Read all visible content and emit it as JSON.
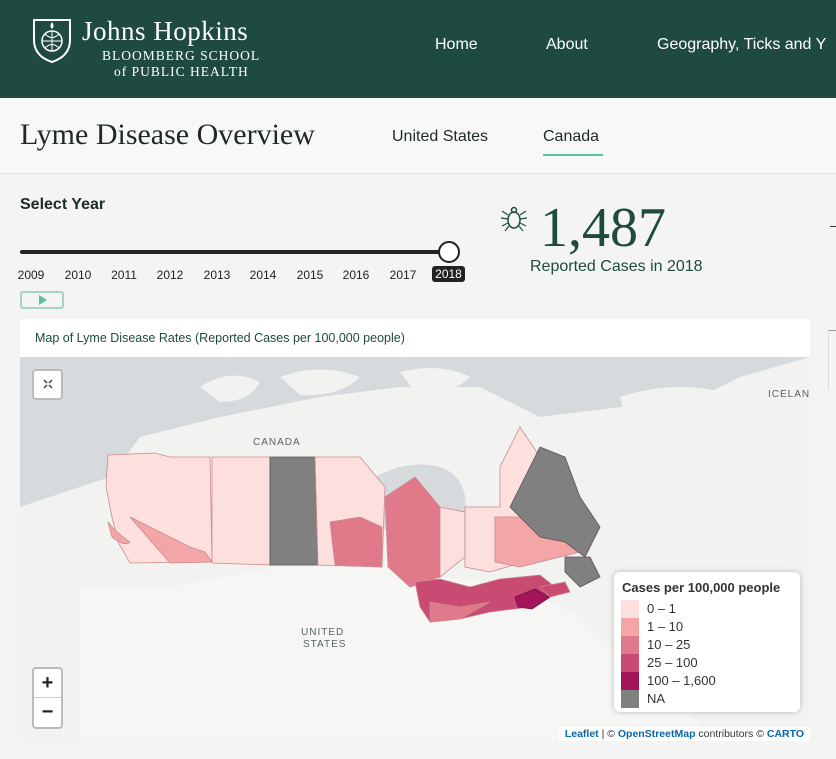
{
  "header": {
    "logo_name": "Johns Hopkins",
    "logo_sub1": "BLOOMBERG SCHOOL",
    "logo_sub2": "of PUBLIC HEALTH",
    "nav": [
      "Home",
      "About",
      "Geography, Ticks and Y"
    ]
  },
  "subheader": {
    "title": "Lyme Disease Overview",
    "tabs": [
      "United States",
      "Canada"
    ],
    "active_tab": "Canada"
  },
  "year_selector": {
    "label": "Select Year",
    "years": [
      "2009",
      "2010",
      "2011",
      "2012",
      "2013",
      "2014",
      "2015",
      "2016",
      "2017",
      "2018"
    ],
    "selected": "2018",
    "selected_fraction": 1.0
  },
  "stat": {
    "value": "1,487",
    "label": "Reported Cases in 2018",
    "icon": "tick-icon"
  },
  "map": {
    "title": "Map of Lyme Disease Rates (Reported Cases per 100,000 people)",
    "labels": {
      "canada": "CANADA",
      "us_line1": "UNITED",
      "us_line2": "STATES",
      "iceland": "ICELAN"
    },
    "zoom_in": "+",
    "zoom_out": "−",
    "expand_icon": "expand-icon",
    "legend": {
      "title": "Cases per 100,000 people",
      "items": [
        {
          "label": "0 – 1",
          "color": "#fde0dd"
        },
        {
          "label": "1 – 10",
          "color": "#f4a5a5"
        },
        {
          "label": "10 – 25",
          "color": "#e07a8a"
        },
        {
          "label": "25 – 100",
          "color": "#c94a72"
        },
        {
          "label": "100 – 1,600",
          "color": "#a3145a"
        },
        {
          "label": "NA",
          "color": "#808080"
        }
      ]
    },
    "attribution": {
      "leaflet": "Leaflet",
      "sep": "| ©",
      "osm": "OpenStreetMap",
      "contrib": "contributors ©",
      "carto": "CARTO"
    }
  },
  "colors": {
    "brand": "#1f4a40",
    "accent": "#58c3a0"
  }
}
